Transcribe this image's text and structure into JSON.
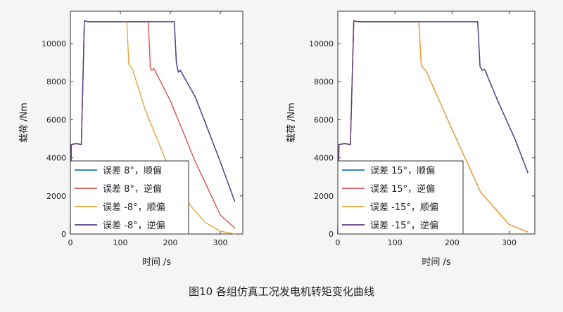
{
  "caption": "图10 各组仿真工况发电机转矩变化曲线",
  "chart_data": [
    {
      "type": "line",
      "xlabel": "时间 /s",
      "ylabel": "载荷 /Nm",
      "xlim": [
        0,
        345
      ],
      "ylim": [
        0,
        11700
      ],
      "xticks": [
        0,
        100,
        200,
        300
      ],
      "yticks": [
        0,
        2000,
        4000,
        6000,
        8000,
        10000
      ],
      "legend_position": "bottom-left",
      "series": [
        {
          "name": "误差 8°，顺偏",
          "color": "#1f77b4",
          "points": [
            [
              0,
              0
            ],
            [
              2,
              4700
            ],
            [
              12,
              4750
            ],
            [
              22,
              4700
            ],
            [
              28,
              11200
            ],
            [
              35,
              11150
            ],
            [
              100,
              11150
            ],
            [
              208,
              11150
            ],
            [
              212,
              9000
            ],
            [
              216,
              8500
            ],
            [
              220,
              8600
            ],
            [
              250,
              7200
            ],
            [
              300,
              3800
            ],
            [
              329,
              1700
            ]
          ]
        },
        {
          "name": "误差 8°，逆偏",
          "color": "#d9534f",
          "points": [
            [
              0,
              0
            ],
            [
              2,
              4700
            ],
            [
              12,
              4750
            ],
            [
              22,
              4700
            ],
            [
              28,
              11200
            ],
            [
              35,
              11150
            ],
            [
              100,
              11150
            ],
            [
              156,
              11150
            ],
            [
              160,
              8700
            ],
            [
              163,
              8600
            ],
            [
              167,
              8700
            ],
            [
              200,
              7000
            ],
            [
              250,
              3800
            ],
            [
              300,
              1000
            ],
            [
              330,
              300
            ]
          ]
        },
        {
          "name": "误差 -8°，顺偏",
          "color": "#e8a33d",
          "points": [
            [
              0,
              0
            ],
            [
              2,
              4700
            ],
            [
              12,
              4750
            ],
            [
              22,
              4700
            ],
            [
              28,
              11200
            ],
            [
              35,
              11150
            ],
            [
              100,
              11150
            ],
            [
              113,
              11150
            ],
            [
              117,
              8900
            ],
            [
              121,
              8800
            ],
            [
              125,
              8600
            ],
            [
              150,
              6500
            ],
            [
              200,
              3300
            ],
            [
              240,
              1500
            ],
            [
              270,
              600
            ],
            [
              300,
              150
            ],
            [
              330,
              0
            ]
          ]
        },
        {
          "name": "误差 -8°，逆偏",
          "color": "#5a3d8a",
          "points": [
            [
              0,
              0
            ],
            [
              2,
              4700
            ],
            [
              12,
              4750
            ],
            [
              22,
              4700
            ],
            [
              28,
              11200
            ],
            [
              35,
              11150
            ],
            [
              100,
              11150
            ],
            [
              208,
              11150
            ],
            [
              212,
              9000
            ],
            [
              216,
              8500
            ],
            [
              220,
              8600
            ],
            [
              250,
              7200
            ],
            [
              300,
              3800
            ],
            [
              329,
              1700
            ]
          ]
        }
      ]
    },
    {
      "type": "line",
      "xlabel": "时间 /s",
      "ylabel": "载荷 /Nm",
      "xlim": [
        0,
        345
      ],
      "ylim": [
        0,
        11700
      ],
      "xticks": [
        0,
        100,
        200,
        300
      ],
      "yticks": [
        0,
        2000,
        4000,
        6000,
        8000,
        10000
      ],
      "legend_position": "bottom-left",
      "series": [
        {
          "name": "误差 15°，顺偏",
          "color": "#1f77b4",
          "points": [
            [
              0,
              0
            ],
            [
              2,
              4700
            ],
            [
              12,
              4750
            ],
            [
              22,
              4700
            ],
            [
              28,
              11200
            ],
            [
              35,
              11150
            ],
            [
              100,
              11150
            ],
            [
              245,
              11150
            ],
            [
              249,
              8800
            ],
            [
              253,
              8600
            ],
            [
              257,
              8650
            ],
            [
              280,
              7000
            ],
            [
              310,
              5000
            ],
            [
              333,
              3200
            ]
          ]
        },
        {
          "name": "误差 15°，逆偏",
          "color": "#d9534f",
          "points": [
            [
              0,
              0
            ],
            [
              2,
              4700
            ],
            [
              12,
              4750
            ],
            [
              22,
              4700
            ],
            [
              28,
              11200
            ],
            [
              35,
              11150
            ],
            [
              100,
              11150
            ],
            [
              142,
              11150
            ],
            [
              146,
              8900
            ],
            [
              150,
              8700
            ],
            [
              154,
              8600
            ],
            [
              200,
              5500
            ],
            [
              250,
              2200
            ],
            [
              300,
              500
            ],
            [
              333,
              100
            ]
          ]
        },
        {
          "name": "误差 -15°，顺偏",
          "color": "#e8a33d",
          "points": [
            [
              0,
              0
            ],
            [
              2,
              4700
            ],
            [
              12,
              4750
            ],
            [
              22,
              4700
            ],
            [
              28,
              11200
            ],
            [
              35,
              11150
            ],
            [
              100,
              11150
            ],
            [
              142,
              11150
            ],
            [
              146,
              8900
            ],
            [
              150,
              8700
            ],
            [
              154,
              8600
            ],
            [
              200,
              5500
            ],
            [
              250,
              2200
            ],
            [
              300,
              500
            ],
            [
              333,
              100
            ]
          ]
        },
        {
          "name": "误差 -15°，逆偏",
          "color": "#5a3d8a",
          "points": [
            [
              0,
              0
            ],
            [
              2,
              4700
            ],
            [
              12,
              4750
            ],
            [
              22,
              4700
            ],
            [
              28,
              11200
            ],
            [
              35,
              11150
            ],
            [
              100,
              11150
            ],
            [
              245,
              11150
            ],
            [
              249,
              8800
            ],
            [
              253,
              8600
            ],
            [
              257,
              8650
            ],
            [
              280,
              7000
            ],
            [
              310,
              5000
            ],
            [
              333,
              3200
            ]
          ]
        }
      ]
    }
  ]
}
